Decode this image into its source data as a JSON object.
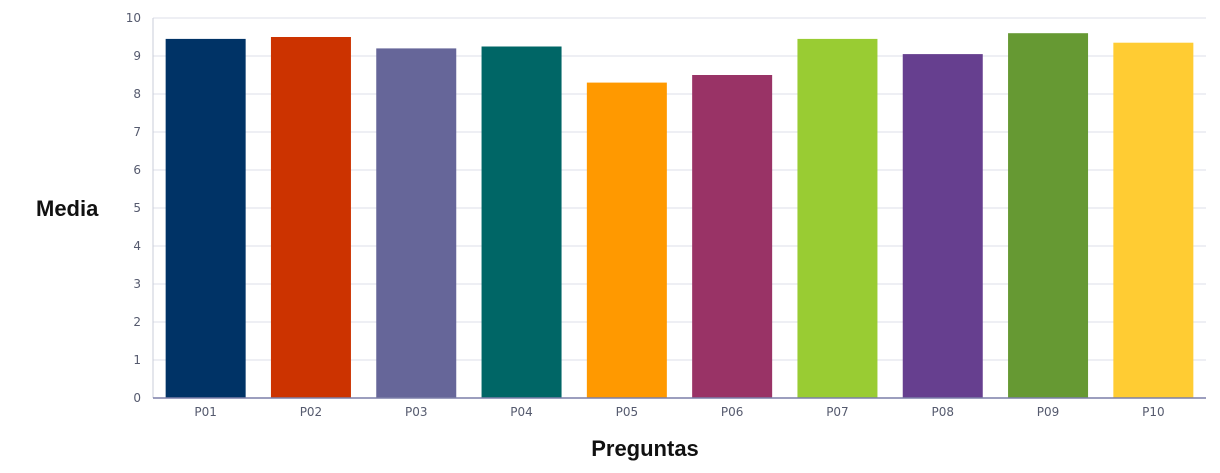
{
  "chart_data": {
    "type": "bar",
    "title": "",
    "xlabel": "Preguntas",
    "ylabel": "Media",
    "categories": [
      "P01",
      "P02",
      "P03",
      "P04",
      "P05",
      "P06",
      "P07",
      "P08",
      "P09",
      "P10"
    ],
    "values": [
      9.45,
      9.5,
      9.2,
      9.25,
      8.3,
      8.5,
      9.45,
      9.05,
      9.6,
      9.35
    ],
    "colors": [
      "#003366",
      "#cc3300",
      "#666699",
      "#006666",
      "#ff9900",
      "#993366",
      "#99cc33",
      "#663f8f",
      "#669933",
      "#ffcc33"
    ],
    "ylim": [
      0,
      10
    ],
    "yticks": [
      0,
      1,
      2,
      3,
      4,
      5,
      6,
      7,
      8,
      9,
      10
    ],
    "grid": true,
    "legend": "none"
  }
}
